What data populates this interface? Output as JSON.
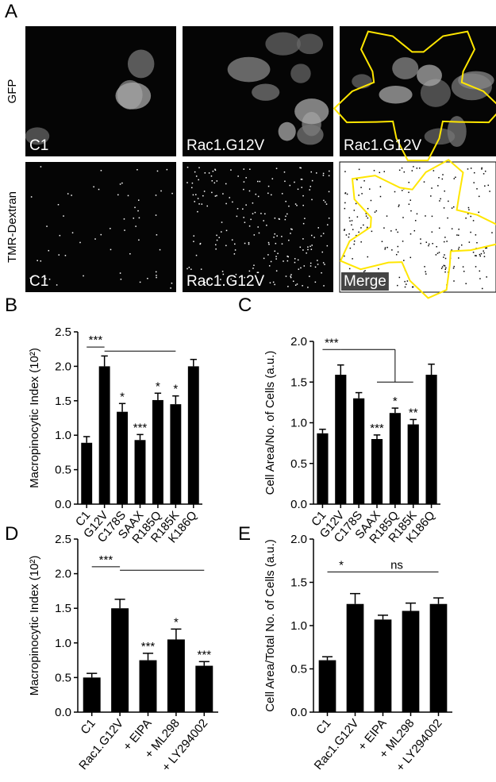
{
  "panel_a": {
    "label": "A",
    "rows": [
      "GFP",
      "TMR-Dextran"
    ],
    "images": [
      [
        "C1",
        "Rac1.G12V",
        "Rac1.G12V"
      ],
      [
        "C1",
        "Rac1.G12V",
        "Merge"
      ]
    ]
  },
  "chart_data": [
    {
      "type": "bar",
      "panel": "B",
      "y_label": "Macropinocytic Index (10²)",
      "categories": [
        "C1",
        "G12V",
        "C178S",
        "SAAX",
        "R185Q",
        "R185K",
        "K186Q"
      ],
      "values": [
        0.89,
        2.0,
        1.34,
        0.93,
        1.51,
        1.45,
        2.0
      ],
      "errors": [
        0.09,
        0.15,
        0.12,
        0.08,
        0.1,
        0.12,
        0.1
      ],
      "significance": [
        null,
        null,
        "*",
        "***",
        "*",
        "*",
        null
      ],
      "brackets": [
        "***"
      ],
      "color": "#000000",
      "ylim": [
        0,
        2.5
      ],
      "yticks": [
        {
          "value": 0,
          "label": "0.0"
        },
        0.5,
        {
          "value": 1,
          "label": "1.0"
        },
        1.5,
        {
          "value": 2,
          "label": "2.0"
        },
        2.5
      ]
    },
    {
      "type": "bar",
      "panel": "C",
      "y_label": "Cell Area/No. of Cells (a.u.)",
      "categories": [
        "C1",
        "G12V",
        "C178S",
        "SAAX",
        "R185Q",
        "R185K",
        "K186Q"
      ],
      "values": [
        0.87,
        1.59,
        1.3,
        0.8,
        1.12,
        0.98,
        1.59
      ],
      "errors": [
        0.05,
        0.12,
        0.07,
        0.05,
        0.06,
        0.06,
        0.13
      ],
      "significance": [
        null,
        null,
        null,
        "***",
        "*",
        "**",
        null
      ],
      "brackets": [
        "***"
      ],
      "color": "#000000",
      "ylim": [
        0,
        2
      ],
      "yticks": [
        {
          "value": 0,
          "label": "0.0"
        },
        0.5,
        {
          "value": 1,
          "label": "1.0"
        },
        1.5,
        {
          "value": 2,
          "label": "2.0"
        }
      ]
    },
    {
      "type": "bar",
      "panel": "D",
      "y_label": "Macropinocytic Index (10²)",
      "categories": [
        "C1",
        "Rac1.G12V",
        "+ EIPA",
        "+ ML298",
        "+ LY294002"
      ],
      "values": [
        0.5,
        1.5,
        0.75,
        1.05,
        0.67
      ],
      "errors": [
        0.06,
        0.13,
        0.1,
        0.15,
        0.06
      ],
      "significance": [
        null,
        null,
        "***",
        "*",
        "***"
      ],
      "brackets": [
        "***"
      ],
      "color": "#000000",
      "ylim": [
        0,
        2.5
      ],
      "yticks": [
        {
          "value": 0,
          "label": "0.0"
        },
        0.5,
        {
          "value": 1,
          "label": "1.0"
        },
        1.5,
        {
          "value": 2,
          "label": "2.0"
        },
        2.5
      ]
    },
    {
      "type": "bar",
      "panel": "E",
      "y_label": "Cell Area/Total No. of Cells (a.u.)",
      "categories": [
        "C1",
        "Rac1.G12V",
        "+ EIPA",
        "+ ML298",
        "+ LY294002"
      ],
      "values": [
        0.6,
        1.25,
        1.07,
        1.17,
        1.25
      ],
      "errors": [
        0.04,
        0.12,
        0.05,
        0.09,
        0.07
      ],
      "significance": [
        null,
        null,
        null,
        null,
        null
      ],
      "brackets": [
        "*",
        "ns"
      ],
      "color": "#000000",
      "ylim": [
        0,
        2
      ],
      "yticks": [
        {
          "value": 0,
          "label": "0.0"
        },
        0.5,
        {
          "value": 1,
          "label": "1.0"
        },
        1.5,
        {
          "value": 2,
          "label": "2.0"
        }
      ]
    }
  ]
}
